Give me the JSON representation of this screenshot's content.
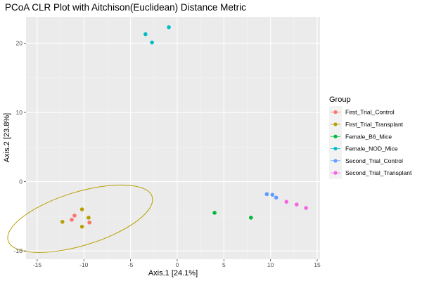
{
  "chart_data": {
    "type": "scatter",
    "title": "PCoA CLR Plot with Aitchison(Euclidean) Distance Metric",
    "xlabel": "Axis.1   [24.1%]",
    "ylabel": "Axis.2   [23.8%]",
    "xlim": [
      -16.2,
      15.3
    ],
    "ylim": [
      -11.2,
      23.8
    ],
    "x_ticks": [
      -15,
      -10,
      -5,
      0,
      5,
      10,
      15
    ],
    "x_tick_labels": [
      "-15",
      "-10",
      "-5",
      "0",
      "5",
      "10",
      "15"
    ],
    "y_ticks": [
      -10,
      0,
      10,
      20
    ],
    "y_tick_labels": [
      "-10",
      "0",
      "10",
      "20"
    ],
    "grid": true,
    "legend_position": "right",
    "legend_title": "Group",
    "series": [
      {
        "name": "First_Trial_Control",
        "color": "#F8766D",
        "points": [
          [
            -11.0,
            -4.9
          ],
          [
            -11.3,
            -5.5
          ],
          [
            -9.4,
            -5.9
          ]
        ]
      },
      {
        "name": "First_Trial_Transplant",
        "color": "#B79F00",
        "points": [
          [
            -12.3,
            -5.8
          ],
          [
            -10.2,
            -4.0
          ],
          [
            -9.5,
            -5.2
          ],
          [
            -10.2,
            -6.5
          ]
        ]
      },
      {
        "name": "Female_B6_Mice",
        "color": "#00BA38",
        "points": [
          [
            4.0,
            -4.5
          ],
          [
            7.9,
            -5.2
          ]
        ]
      },
      {
        "name": "Female_NOD_Mice",
        "color": "#00BFC4",
        "points": [
          [
            -3.4,
            21.3
          ],
          [
            -2.7,
            20.1
          ],
          [
            -0.9,
            22.3
          ]
        ]
      },
      {
        "name": "Second_Trial_Control",
        "color": "#619CFF",
        "points": [
          [
            9.6,
            -1.8
          ],
          [
            10.2,
            -1.9
          ],
          [
            10.6,
            -2.3
          ]
        ]
      },
      {
        "name": "Second_Trial_Transplant",
        "color": "#F564E3",
        "points": [
          [
            11.7,
            -2.9
          ],
          [
            12.8,
            -3.3
          ],
          [
            13.8,
            -3.8
          ]
        ]
      }
    ],
    "ellipses": [
      {
        "group": "First_Trial_Transplant",
        "color": "#B79F00",
        "center": [
          -10.4,
          -5.35
        ],
        "rx_data": 8.07,
        "ry_data": 3.86,
        "rotation_deg": -17
      }
    ]
  }
}
